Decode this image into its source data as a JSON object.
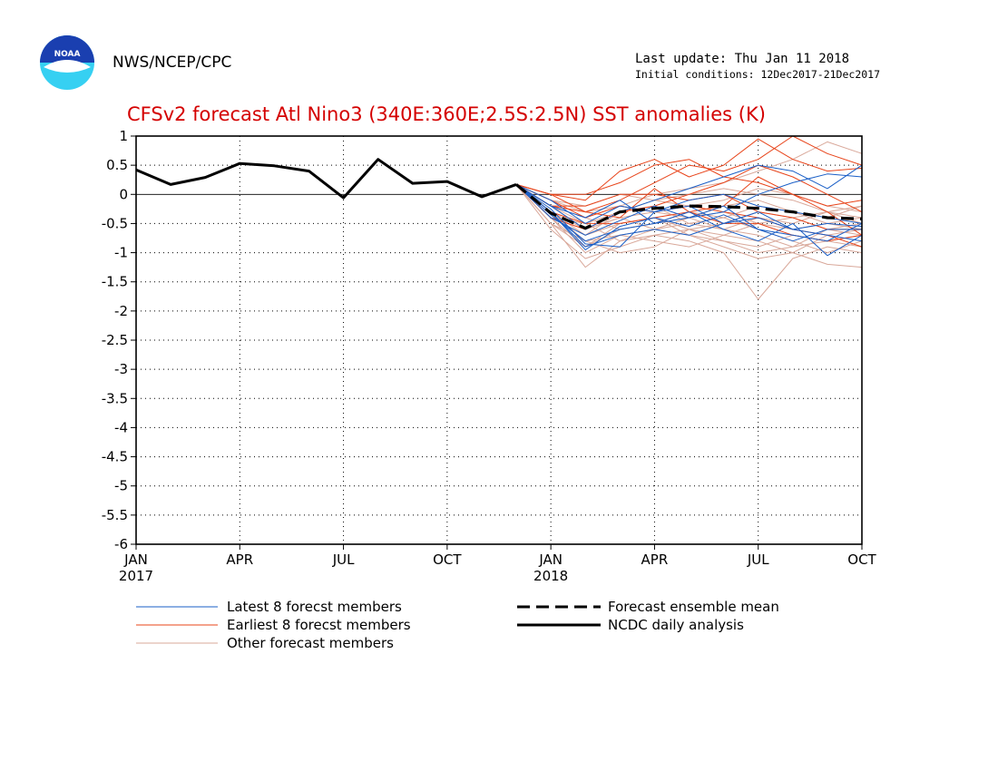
{
  "header": {
    "agency": "NWS/NCEP/CPC",
    "last_update": "Last update: Thu Jan 11 2018",
    "initial_conditions": "Initial conditions: 12Dec2017-21Dec2017",
    "logo_text": "NOAA"
  },
  "colors": {
    "latest": "#1a5fc7",
    "earliest": "#e8441a",
    "other": "#d9a89a",
    "title": "#d40000",
    "analysis": "#000000"
  },
  "chart_data": {
    "type": "line",
    "title": "CFSv2 forecast Atl Nino3 (340E:360E;2.5S:2.5N) SST anomalies (K)",
    "xlabel": "",
    "ylabel": "",
    "ylim": [
      -6,
      1
    ],
    "yticks": [
      "1",
      "0.5",
      "0",
      "-0.5",
      "-1",
      "-1.5",
      "-2",
      "-2.5",
      "-3",
      "-3.5",
      "-4",
      "-4.5",
      "-5",
      "-5.5",
      "-6"
    ],
    "xticks": [
      {
        "month": 0,
        "label": "JAN",
        "year": "2017"
      },
      {
        "month": 3,
        "label": "APR",
        "year": ""
      },
      {
        "month": 6,
        "label": "JUL",
        "year": ""
      },
      {
        "month": 9,
        "label": "OCT",
        "year": ""
      },
      {
        "month": 12,
        "label": "JAN",
        "year": "2018"
      },
      {
        "month": 15,
        "label": "APR",
        "year": ""
      },
      {
        "month": 18,
        "label": "JUL",
        "year": ""
      },
      {
        "month": 21,
        "label": "OCT",
        "year": ""
      }
    ],
    "grid": true,
    "legend": [
      {
        "label": "Latest 8 forecst members",
        "style": "latest"
      },
      {
        "label": "Earliest 8 forecst members",
        "style": "earliest"
      },
      {
        "label": "Other forecast members",
        "style": "other"
      },
      {
        "label": "Forecast ensemble mean",
        "style": "mean"
      },
      {
        "label": "NCDC daily analysis",
        "style": "analysis"
      }
    ],
    "series": [
      {
        "name": "NCDC daily analysis",
        "style": "analysis",
        "x": [
          0,
          1,
          2,
          3,
          4,
          5,
          6,
          7,
          8,
          9,
          10,
          11
        ],
        "y": [
          0.42,
          0.17,
          0.29,
          0.53,
          0.49,
          0.4,
          -0.06,
          0.6,
          0.19,
          0.22,
          -0.04,
          0.17
        ]
      },
      {
        "name": "Forecast ensemble mean",
        "style": "mean",
        "x": [
          11,
          12,
          13,
          14,
          15,
          16,
          17,
          18,
          19,
          20,
          21
        ],
        "y": [
          0.17,
          -0.32,
          -0.58,
          -0.3,
          -0.24,
          -0.2,
          -0.21,
          -0.24,
          -0.3,
          -0.4,
          -0.42
        ]
      }
    ],
    "members": {
      "x": [
        11,
        12,
        13,
        14,
        15,
        16,
        17,
        18,
        19,
        20,
        21
      ],
      "latest": [
        [
          0.17,
          -0.3,
          -0.95,
          -0.55,
          -0.4,
          -0.55,
          -0.35,
          -0.6,
          -0.7,
          -0.8,
          -0.5
        ],
        [
          0.17,
          -0.25,
          -0.85,
          -0.9,
          -0.3,
          -0.2,
          -0.5,
          -0.3,
          -0.6,
          -0.5,
          -0.55
        ],
        [
          0.17,
          -0.4,
          -0.7,
          -0.45,
          -0.2,
          -0.4,
          -0.3,
          0.0,
          0.2,
          0.35,
          0.3
        ],
        [
          0.17,
          -0.2,
          -0.6,
          -0.3,
          -0.1,
          0.1,
          0.3,
          0.5,
          0.4,
          0.1,
          0.5
        ],
        [
          0.17,
          -0.35,
          -0.8,
          -0.6,
          -0.5,
          -0.3,
          -0.6,
          -0.8,
          -0.5,
          -1.05,
          -0.7
        ],
        [
          0.17,
          -0.1,
          -0.5,
          -0.2,
          -0.3,
          -0.1,
          0.0,
          -0.2,
          -0.3,
          -0.4,
          -0.5
        ],
        [
          0.17,
          -0.3,
          -0.9,
          -0.7,
          -0.6,
          -0.7,
          -0.5,
          -0.4,
          -0.6,
          -0.7,
          -0.8
        ],
        [
          0.17,
          -0.2,
          -0.4,
          -0.1,
          -0.5,
          -0.4,
          -0.2,
          -0.6,
          -0.8,
          -0.6,
          -0.6
        ]
      ],
      "earliest": [
        [
          0.17,
          0.0,
          -0.1,
          0.4,
          0.6,
          0.3,
          0.5,
          0.95,
          0.6,
          0.4,
          0.45
        ],
        [
          0.17,
          -0.2,
          -0.3,
          -0.1,
          0.2,
          0.5,
          0.4,
          0.6,
          1.0,
          0.7,
          0.5
        ],
        [
          0.17,
          0.0,
          0.0,
          0.2,
          0.5,
          0.6,
          0.3,
          0.2,
          0.0,
          -0.2,
          -0.1
        ],
        [
          0.17,
          -0.4,
          -0.6,
          -0.3,
          -0.2,
          0.0,
          0.2,
          0.5,
          0.3,
          0.0,
          -0.3
        ],
        [
          0.17,
          -0.3,
          -0.5,
          -0.5,
          -0.4,
          -0.3,
          -0.5,
          -0.5,
          -0.7,
          -0.8,
          -0.7
        ],
        [
          0.17,
          -0.2,
          -0.2,
          0.0,
          0.0,
          -0.1,
          0.0,
          -0.3,
          -0.4,
          -0.6,
          -0.6
        ],
        [
          0.17,
          -0.1,
          -0.4,
          -0.2,
          -0.3,
          -0.2,
          -0.3,
          -0.4,
          -0.6,
          -0.7,
          -0.9
        ],
        [
          0.17,
          0.0,
          -0.3,
          -0.4,
          0.1,
          -0.3,
          -0.2,
          0.3,
          0.0,
          -0.3,
          -0.7
        ]
      ],
      "other": [
        [
          0.17,
          -0.5,
          -1.25,
          -0.8,
          -0.6,
          -0.7,
          -0.9,
          -1.1,
          -1.0,
          -1.2,
          -1.25
        ],
        [
          0.17,
          -0.6,
          -1.1,
          -0.9,
          -0.7,
          -0.8,
          -1.0,
          -1.8,
          -1.1,
          -0.9,
          -1.0
        ],
        [
          0.17,
          -0.4,
          -0.9,
          -0.6,
          -0.5,
          -0.4,
          -0.6,
          -0.7,
          -0.9,
          -0.8,
          -0.9
        ],
        [
          0.17,
          -0.3,
          -0.7,
          -0.5,
          -0.4,
          -0.6,
          -0.5,
          -0.3,
          -0.4,
          -0.6,
          -0.5
        ],
        [
          0.17,
          -0.2,
          -0.5,
          -0.3,
          -0.1,
          -0.2,
          -0.1,
          0.1,
          0.0,
          -0.2,
          -0.3
        ],
        [
          0.17,
          -0.1,
          -0.3,
          -0.2,
          0.0,
          0.1,
          0.2,
          0.4,
          0.6,
          0.9,
          0.7
        ],
        [
          0.17,
          -0.4,
          -1.0,
          -0.7,
          -0.8,
          -0.9,
          -0.7,
          -0.8,
          -1.0,
          -0.7,
          -0.6
        ],
        [
          0.17,
          -0.5,
          -0.8,
          -1.0,
          -0.9,
          -0.6,
          -0.8,
          -0.9,
          -0.7,
          -0.8,
          -0.7
        ],
        [
          0.17,
          -0.3,
          -0.6,
          -0.4,
          -0.3,
          -0.4,
          -0.3,
          -0.5,
          -0.6,
          -0.5,
          -0.4
        ],
        [
          0.17,
          -0.2,
          -0.4,
          -0.6,
          -0.5,
          -0.3,
          -0.4,
          -0.2,
          -0.3,
          -0.4,
          -0.2
        ],
        [
          0.17,
          -0.4,
          -0.7,
          -0.3,
          -0.2,
          -0.5,
          -0.6,
          -0.4,
          -0.5,
          -0.3,
          -0.5
        ],
        [
          0.17,
          -0.3,
          -0.8,
          -0.7,
          -0.6,
          -0.5,
          -0.4,
          -0.6,
          -0.8,
          -1.0,
          -0.8
        ],
        [
          0.17,
          -0.1,
          -0.2,
          0.0,
          -0.1,
          0.0,
          0.1,
          0.0,
          -0.1,
          -0.3,
          -0.4
        ],
        [
          0.17,
          -0.5,
          -0.9,
          -0.5,
          -0.4,
          -0.7,
          -0.8,
          -1.0,
          -0.9,
          -0.6,
          -0.7
        ],
        [
          0.17,
          -0.2,
          -0.6,
          -0.4,
          -0.6,
          -0.4,
          -0.2,
          -0.1,
          -0.3,
          -0.5,
          -0.6
        ],
        [
          0.17,
          -0.4,
          -0.5,
          -0.8,
          -0.7,
          -0.6,
          -0.7,
          -0.5,
          -0.4,
          -0.3,
          -0.2
        ]
      ]
    }
  }
}
